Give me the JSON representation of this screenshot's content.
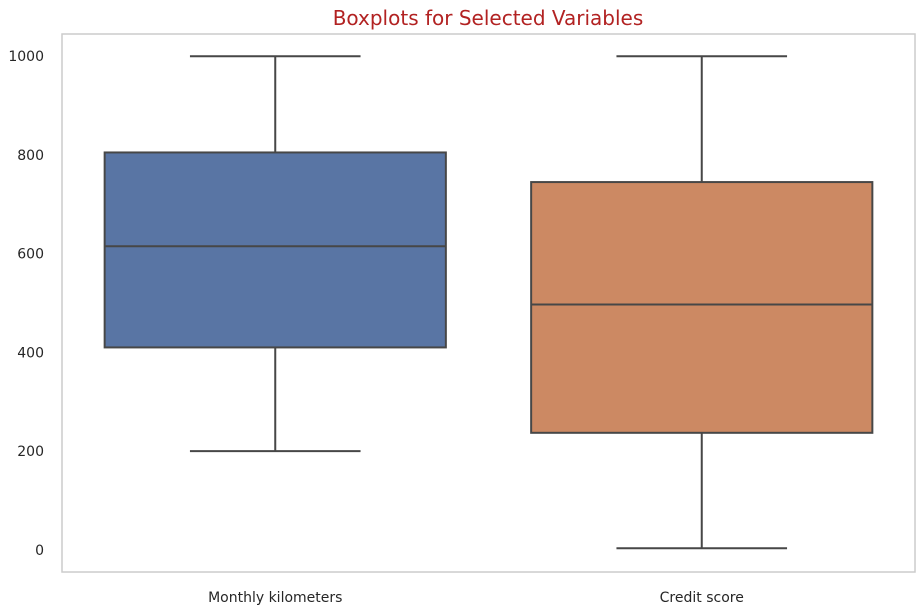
{
  "chart_data": {
    "type": "boxplot",
    "title": "Boxplots for Selected Variables",
    "xlabel": "",
    "ylabel": "",
    "ylim": [
      -45,
      1045
    ],
    "yticks": [
      0,
      200,
      400,
      600,
      800,
      1000
    ],
    "ytick_labels": [
      "0",
      "200",
      "400",
      "600",
      "800",
      "1000"
    ],
    "grid": false,
    "categories": [
      "Monthly kilometers",
      "Credit score"
    ],
    "boxes": [
      {
        "whisker_low": 200,
        "q1": 410,
        "median": 615,
        "q3": 805,
        "whisker_high": 1000,
        "color": "#5975a4"
      },
      {
        "whisker_low": 3,
        "q1": 237,
        "median": 497,
        "q3": 745,
        "whisker_high": 1000,
        "color": "#cc8963"
      }
    ],
    "line_color": "#474747"
  }
}
